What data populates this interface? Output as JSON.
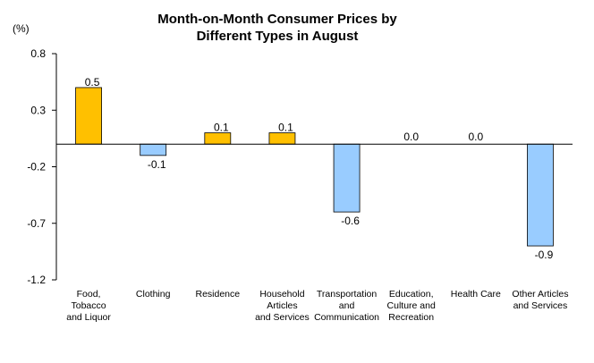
{
  "chart_data": {
    "type": "bar",
    "title_lines": [
      "Month-on-Month Consumer Prices by",
      "Different Types in August"
    ],
    "ylabel": "(%)",
    "xlabel": "",
    "ylim": [
      -1.2,
      0.8
    ],
    "yticks": [
      "0.8",
      "0.3",
      "-0.2",
      "-0.7",
      "-1.2"
    ],
    "ytick_values": [
      0.8,
      0.3,
      -0.2,
      -0.7,
      -1.2
    ],
    "categories": [
      [
        "Food,",
        "Tobacco",
        "and Liquor"
      ],
      [
        "Clothing"
      ],
      [
        "Residence"
      ],
      [
        "Household",
        "Articles",
        "and Services"
      ],
      [
        "Transportation",
        "and",
        "Communication"
      ],
      [
        "Education,",
        "Culture and",
        "Recreation"
      ],
      [
        "Health Care"
      ],
      [
        "Other Articles",
        "and Services"
      ]
    ],
    "values": [
      0.5,
      -0.1,
      0.1,
      0.1,
      -0.6,
      0.0,
      0.0,
      -0.9
    ],
    "data_labels": [
      "0.5",
      "-0.1",
      "0.1",
      "0.1",
      "-0.6",
      "0.0",
      "0.0",
      "-0.9"
    ],
    "positive_color": "#FFC000",
    "negative_color": "#99CCFF",
    "bar_stroke": "#000000",
    "grid": false,
    "legend": "none"
  }
}
